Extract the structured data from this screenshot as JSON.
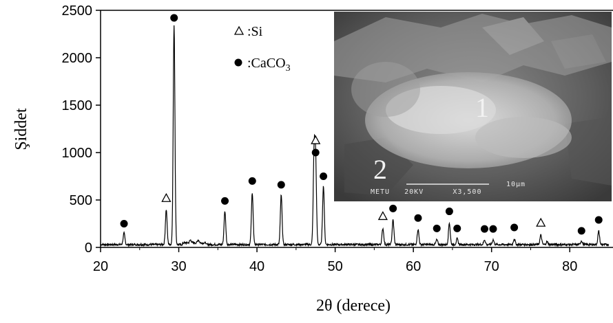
{
  "chart_data": {
    "type": "line",
    "title": "",
    "xlabel": "2θ (derece)",
    "ylabel": "Şiddet",
    "xlim": [
      20,
      85
    ],
    "ylim": [
      0,
      2500
    ],
    "xticks": [
      20,
      30,
      40,
      50,
      60,
      70,
      80
    ],
    "yticks": [
      0,
      500,
      1000,
      1500,
      2000,
      2500
    ],
    "grid": false,
    "legend_placement": "top-center",
    "legend": [
      {
        "marker": "triangle",
        "label": ":Si"
      },
      {
        "marker": "circle",
        "label": ":CaCO",
        "subscript": "3"
      }
    ],
    "baseline": 30,
    "peaks": [
      {
        "x": 23.0,
        "y": 150,
        "phase": "CaCO3"
      },
      {
        "x": 28.4,
        "y": 400,
        "phase": "Si"
      },
      {
        "x": 29.4,
        "y": 2350,
        "phase": "CaCO3"
      },
      {
        "x": 31.5,
        "y": 60,
        "phase": ""
      },
      {
        "x": 32.5,
        "y": 60,
        "phase": ""
      },
      {
        "x": 35.9,
        "y": 380,
        "phase": "CaCO3"
      },
      {
        "x": 39.4,
        "y": 580,
        "phase": "CaCO3"
      },
      {
        "x": 43.1,
        "y": 550,
        "phase": "CaCO3"
      },
      {
        "x": 47.3,
        "y": 930,
        "phase": "CaCO3"
      },
      {
        "x": 47.5,
        "y": 880,
        "phase": "Si"
      },
      {
        "x": 48.5,
        "y": 650,
        "phase": "CaCO3"
      },
      {
        "x": 56.1,
        "y": 200,
        "phase": "Si"
      },
      {
        "x": 57.4,
        "y": 290,
        "phase": "CaCO3"
      },
      {
        "x": 60.6,
        "y": 190,
        "phase": "CaCO3"
      },
      {
        "x": 63.0,
        "y": 80,
        "phase": "CaCO3"
      },
      {
        "x": 64.6,
        "y": 260,
        "phase": "CaCO3"
      },
      {
        "x": 65.6,
        "y": 90,
        "phase": "CaCO3"
      },
      {
        "x": 69.1,
        "y": 80,
        "phase": "CaCO3"
      },
      {
        "x": 70.2,
        "y": 80,
        "phase": "CaCO3"
      },
      {
        "x": 72.9,
        "y": 90,
        "phase": "CaCO3"
      },
      {
        "x": 76.3,
        "y": 130,
        "phase": "Si"
      },
      {
        "x": 77.1,
        "y": 60,
        "phase": ""
      },
      {
        "x": 81.5,
        "y": 70,
        "phase": "CaCO3"
      },
      {
        "x": 83.7,
        "y": 170,
        "phase": "CaCO3"
      }
    ],
    "markers": [
      {
        "phase": "CaCO3",
        "shape": "circle",
        "x": 23.0,
        "y": 250
      },
      {
        "phase": "Si",
        "shape": "triangle",
        "x": 28.4,
        "y": 520
      },
      {
        "phase": "CaCO3",
        "shape": "circle",
        "x": 29.4,
        "y": 2420
      },
      {
        "phase": "CaCO3",
        "shape": "circle",
        "x": 35.9,
        "y": 490
      },
      {
        "phase": "CaCO3",
        "shape": "circle",
        "x": 39.4,
        "y": 700
      },
      {
        "phase": "CaCO3",
        "shape": "circle",
        "x": 43.1,
        "y": 660
      },
      {
        "phase": "Si",
        "shape": "triangle",
        "x": 47.5,
        "y": 1130
      },
      {
        "phase": "CaCO3",
        "shape": "circle",
        "x": 47.5,
        "y": 1000
      },
      {
        "phase": "CaCO3",
        "shape": "circle",
        "x": 48.5,
        "y": 750
      },
      {
        "phase": "Si",
        "shape": "triangle",
        "x": 56.1,
        "y": 330
      },
      {
        "phase": "CaCO3",
        "shape": "circle",
        "x": 57.4,
        "y": 410
      },
      {
        "phase": "CaCO3",
        "shape": "circle",
        "x": 60.6,
        "y": 310
      },
      {
        "phase": "CaCO3",
        "shape": "circle",
        "x": 63.0,
        "y": 200
      },
      {
        "phase": "CaCO3",
        "shape": "circle",
        "x": 64.6,
        "y": 380
      },
      {
        "phase": "CaCO3",
        "shape": "circle",
        "x": 65.6,
        "y": 200
      },
      {
        "phase": "CaCO3",
        "shape": "circle",
        "x": 69.1,
        "y": 195
      },
      {
        "phase": "CaCO3",
        "shape": "circle",
        "x": 70.2,
        "y": 195
      },
      {
        "phase": "CaCO3",
        "shape": "circle",
        "x": 72.9,
        "y": 210
      },
      {
        "phase": "Si",
        "shape": "triangle",
        "x": 76.3,
        "y": 260
      },
      {
        "phase": "CaCO3",
        "shape": "circle",
        "x": 81.5,
        "y": 175
      },
      {
        "phase": "CaCO3",
        "shape": "circle",
        "x": 83.7,
        "y": 290
      }
    ]
  },
  "sem_inset": {
    "region_labels": [
      "1",
      "2"
    ],
    "scale_bar_text": "10μm",
    "caption": "METU   20KV      X3,500"
  }
}
